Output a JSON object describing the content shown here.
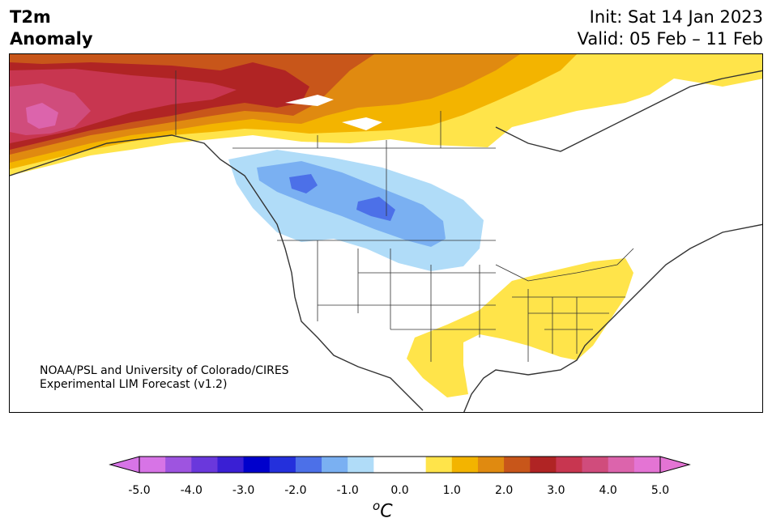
{
  "title": {
    "left_line1": "T2m",
    "left_line2": "Anomaly",
    "init": "Init: Sat 14 Jan 2023",
    "valid": "Valid: 05 Feb – 11 Feb"
  },
  "credit": {
    "line1": "NOAA/PSL and University of Colorado/CIRES",
    "line2": "Experimental LIM Forecast (v1.2)"
  },
  "colorbar": {
    "colors": [
      "#d774e6",
      "#9e54e0",
      "#6a38dc",
      "#3a1fd4",
      "#0000cc",
      "#2430dc",
      "#4c70e8",
      "#7ab0f2",
      "#b0dcf8",
      "#ffffff",
      "#ffffff",
      "#ffe44a",
      "#f3b400",
      "#e08a10",
      "#c8561a",
      "#b02424",
      "#c83650",
      "#d04c7c",
      "#dc64ac",
      "#e474d4"
    ],
    "under_color": "#d774e6",
    "over_color": "#e474d4",
    "tick_labels": [
      "-5.0",
      "-4.0",
      "-3.0",
      "-2.0",
      "-1.0",
      "0.0",
      "1.0",
      "2.0",
      "3.0",
      "4.0",
      "5.0"
    ],
    "unit_sup": "o",
    "unit_base": "C"
  }
}
